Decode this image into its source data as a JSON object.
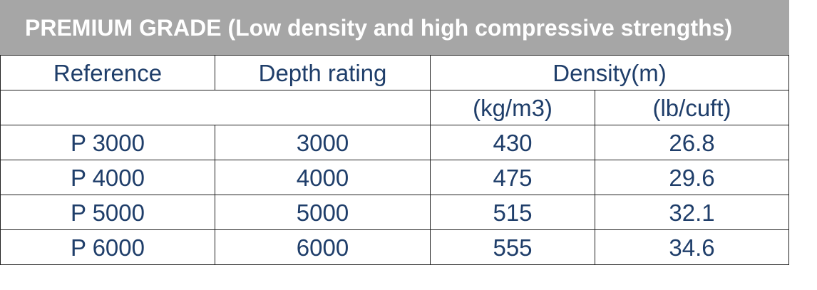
{
  "table": {
    "title": "PREMIUM GRADE (Low density and high compressive strengths)",
    "headers": [
      "Reference",
      "Depth rating",
      "Density(m)"
    ],
    "subheaders": [
      "(kg/m3)",
      "(lb/cuft)"
    ],
    "rows": [
      [
        "P 3000",
        "3000",
        "430",
        "26.8"
      ],
      [
        "P 4000",
        "4000",
        "475",
        "29.6"
      ],
      [
        "P 5000",
        "5000",
        "515",
        "32.1"
      ],
      [
        "P 6000",
        "6000",
        "555",
        "34.6"
      ]
    ]
  }
}
